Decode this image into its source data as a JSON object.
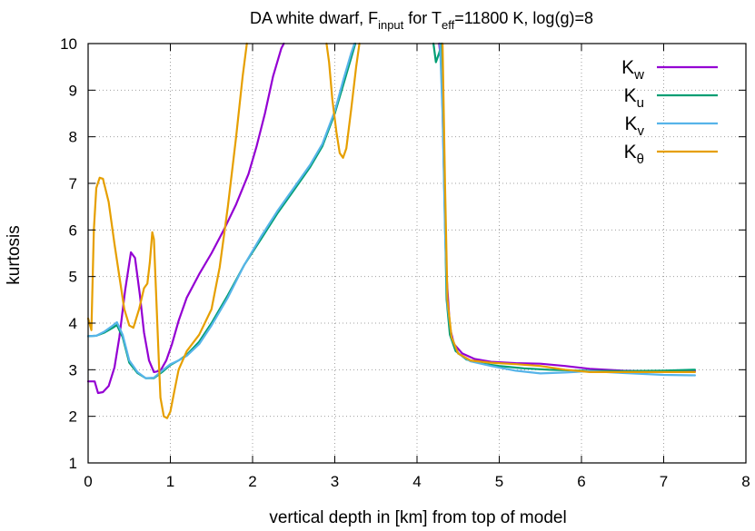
{
  "chart_data": {
    "type": "line",
    "title": {
      "prefix": "DA white dwarf, F",
      "sub1": "input",
      "middle": " for T",
      "sub2": "eff",
      "suffix": "=11800 K, log(g)=8"
    },
    "xlabel": "vertical depth in [km] from top of model",
    "ylabel": "kurtosis",
    "xlim": [
      0,
      8
    ],
    "ylim": [
      1,
      10
    ],
    "xticks": [
      0,
      1,
      2,
      3,
      4,
      5,
      6,
      7,
      8
    ],
    "yticks": [
      1,
      2,
      3,
      4,
      5,
      6,
      7,
      8,
      9,
      10
    ],
    "grid": true,
    "legend_position": "top-right",
    "series": [
      {
        "name": "K",
        "subscript": "w",
        "color": "#9400d3",
        "points": [
          [
            0.0,
            2.75
          ],
          [
            0.08,
            2.75
          ],
          [
            0.12,
            2.5
          ],
          [
            0.18,
            2.52
          ],
          [
            0.25,
            2.65
          ],
          [
            0.32,
            3.05
          ],
          [
            0.38,
            3.7
          ],
          [
            0.45,
            4.7
          ],
          [
            0.52,
            5.52
          ],
          [
            0.57,
            5.4
          ],
          [
            0.63,
            4.6
          ],
          [
            0.68,
            3.8
          ],
          [
            0.74,
            3.2
          ],
          [
            0.8,
            2.95
          ],
          [
            0.88,
            2.98
          ],
          [
            0.95,
            3.2
          ],
          [
            1.02,
            3.55
          ],
          [
            1.1,
            4.05
          ],
          [
            1.2,
            4.55
          ],
          [
            1.35,
            5.05
          ],
          [
            1.5,
            5.5
          ],
          [
            1.65,
            6.0
          ],
          [
            1.8,
            6.55
          ],
          [
            1.95,
            7.2
          ],
          [
            2.05,
            7.8
          ],
          [
            2.15,
            8.5
          ],
          [
            2.25,
            9.3
          ],
          [
            2.35,
            9.9
          ],
          [
            2.38,
            10.0
          ]
        ]
      },
      {
        "name": "K",
        "subscript": "w",
        "color": "#9400d3",
        "points": [
          [
            4.27,
            10.0
          ],
          [
            4.3,
            9.5
          ],
          [
            4.33,
            7.0
          ],
          [
            4.36,
            5.0
          ],
          [
            4.4,
            3.9
          ],
          [
            4.45,
            3.55
          ],
          [
            4.55,
            3.35
          ],
          [
            4.7,
            3.23
          ],
          [
            4.9,
            3.17
          ],
          [
            5.2,
            3.14
          ],
          [
            5.5,
            3.13
          ],
          [
            5.8,
            3.08
          ],
          [
            6.1,
            3.02
          ],
          [
            6.5,
            2.98
          ],
          [
            7.0,
            2.96
          ],
          [
            7.3,
            2.96
          ],
          [
            7.38,
            2.97
          ]
        ]
      },
      {
        "name": "K",
        "subscript": "u",
        "color": "#009e73",
        "points": [
          [
            0.0,
            3.72
          ],
          [
            0.1,
            3.73
          ],
          [
            0.2,
            3.8
          ],
          [
            0.3,
            3.9
          ],
          [
            0.35,
            3.96
          ],
          [
            0.42,
            3.7
          ],
          [
            0.5,
            3.15
          ],
          [
            0.6,
            2.93
          ],
          [
            0.7,
            2.82
          ],
          [
            0.8,
            2.82
          ],
          [
            0.9,
            2.95
          ],
          [
            1.0,
            3.1
          ],
          [
            1.1,
            3.2
          ],
          [
            1.2,
            3.32
          ],
          [
            1.35,
            3.6
          ],
          [
            1.5,
            4.0
          ],
          [
            1.7,
            4.6
          ],
          [
            1.9,
            5.25
          ],
          [
            2.1,
            5.8
          ],
          [
            2.3,
            6.35
          ],
          [
            2.5,
            6.85
          ],
          [
            2.7,
            7.35
          ],
          [
            2.85,
            7.8
          ],
          [
            3.0,
            8.5
          ],
          [
            3.1,
            9.1
          ],
          [
            3.2,
            9.7
          ],
          [
            3.25,
            10.0
          ]
        ]
      },
      {
        "name": "K",
        "subscript": "u",
        "color": "#009e73",
        "points": [
          [
            4.2,
            10.0
          ],
          [
            4.23,
            9.6
          ],
          [
            4.27,
            9.8
          ],
          [
            4.3,
            10.0
          ]
        ]
      },
      {
        "name": "K",
        "subscript": "u",
        "color": "#009e73",
        "points": [
          [
            4.3,
            10.0
          ],
          [
            4.33,
            7.0
          ],
          [
            4.36,
            4.5
          ],
          [
            4.4,
            3.75
          ],
          [
            4.47,
            3.4
          ],
          [
            4.6,
            3.22
          ],
          [
            4.8,
            3.13
          ],
          [
            5.0,
            3.08
          ],
          [
            5.3,
            3.03
          ],
          [
            5.6,
            3.0
          ],
          [
            6.0,
            2.98
          ],
          [
            6.5,
            2.97
          ],
          [
            7.0,
            2.98
          ],
          [
            7.38,
            3.0
          ]
        ]
      },
      {
        "name": "K",
        "subscript": "v",
        "color": "#56b4e9",
        "points": [
          [
            0.0,
            3.72
          ],
          [
            0.1,
            3.73
          ],
          [
            0.2,
            3.82
          ],
          [
            0.3,
            3.95
          ],
          [
            0.35,
            4.02
          ],
          [
            0.42,
            3.75
          ],
          [
            0.5,
            3.2
          ],
          [
            0.6,
            2.95
          ],
          [
            0.7,
            2.82
          ],
          [
            0.8,
            2.83
          ],
          [
            0.9,
            2.98
          ],
          [
            1.0,
            3.12
          ],
          [
            1.1,
            3.2
          ],
          [
            1.2,
            3.3
          ],
          [
            1.35,
            3.55
          ],
          [
            1.5,
            3.95
          ],
          [
            1.7,
            4.55
          ],
          [
            1.9,
            5.25
          ],
          [
            2.1,
            5.85
          ],
          [
            2.3,
            6.4
          ],
          [
            2.5,
            6.9
          ],
          [
            2.7,
            7.4
          ],
          [
            2.85,
            7.85
          ],
          [
            3.0,
            8.55
          ],
          [
            3.1,
            9.2
          ],
          [
            3.2,
            9.8
          ],
          [
            3.24,
            10.0
          ]
        ]
      },
      {
        "name": "K",
        "subscript": "v",
        "color": "#56b4e9",
        "points": [
          [
            4.28,
            10.0
          ],
          [
            4.31,
            8.5
          ],
          [
            4.34,
            6.0
          ],
          [
            4.37,
            4.4
          ],
          [
            4.42,
            3.7
          ],
          [
            4.5,
            3.35
          ],
          [
            4.65,
            3.18
          ],
          [
            4.9,
            3.08
          ],
          [
            5.2,
            2.98
          ],
          [
            5.5,
            2.92
          ],
          [
            5.8,
            2.94
          ],
          [
            6.1,
            2.97
          ],
          [
            6.5,
            2.93
          ],
          [
            7.0,
            2.89
          ],
          [
            7.38,
            2.88
          ]
        ]
      },
      {
        "name": "K",
        "subscript": "θ",
        "color": "#e69f00",
        "points": [
          [
            0.0,
            4.1
          ],
          [
            0.04,
            3.85
          ],
          [
            0.07,
            6.0
          ],
          [
            0.1,
            6.9
          ],
          [
            0.14,
            7.12
          ],
          [
            0.18,
            7.1
          ],
          [
            0.25,
            6.6
          ],
          [
            0.32,
            5.7
          ],
          [
            0.38,
            5.0
          ],
          [
            0.44,
            4.3
          ],
          [
            0.5,
            3.95
          ],
          [
            0.55,
            3.9
          ],
          [
            0.62,
            4.3
          ],
          [
            0.68,
            4.75
          ],
          [
            0.72,
            4.85
          ],
          [
            0.75,
            5.3
          ],
          [
            0.78,
            5.95
          ],
          [
            0.8,
            5.8
          ],
          [
            0.83,
            4.5
          ],
          [
            0.86,
            3.2
          ],
          [
            0.88,
            2.4
          ],
          [
            0.92,
            2.0
          ],
          [
            0.96,
            1.96
          ],
          [
            1.0,
            2.1
          ],
          [
            1.05,
            2.55
          ],
          [
            1.1,
            3.0
          ],
          [
            1.2,
            3.4
          ],
          [
            1.35,
            3.75
          ],
          [
            1.5,
            4.3
          ],
          [
            1.6,
            5.2
          ],
          [
            1.7,
            6.5
          ],
          [
            1.8,
            8.0
          ],
          [
            1.88,
            9.3
          ],
          [
            1.93,
            10.0
          ]
        ]
      },
      {
        "name": "K",
        "subscript": "θ",
        "color": "#e69f00",
        "points": [
          [
            2.9,
            10.0
          ],
          [
            2.93,
            9.6
          ],
          [
            2.97,
            8.8
          ],
          [
            3.02,
            8.1
          ],
          [
            3.06,
            7.65
          ],
          [
            3.1,
            7.55
          ],
          [
            3.14,
            7.75
          ],
          [
            3.2,
            8.6
          ],
          [
            3.26,
            9.5
          ],
          [
            3.3,
            10.0
          ]
        ]
      },
      {
        "name": "K",
        "subscript": "θ",
        "color": "#e69f00",
        "points": [
          [
            4.31,
            10.0
          ],
          [
            4.34,
            7.0
          ],
          [
            4.37,
            4.5
          ],
          [
            4.42,
            3.7
          ],
          [
            4.5,
            3.35
          ],
          [
            4.65,
            3.2
          ],
          [
            4.9,
            3.15
          ],
          [
            5.2,
            3.12
          ],
          [
            5.5,
            3.08
          ],
          [
            5.8,
            3.0
          ],
          [
            6.1,
            2.95
          ],
          [
            6.5,
            2.95
          ],
          [
            7.0,
            2.95
          ],
          [
            7.38,
            2.95
          ]
        ]
      }
    ],
    "legend": [
      {
        "name": "K",
        "subscript": "w",
        "color": "#9400d3"
      },
      {
        "name": "K",
        "subscript": "u",
        "color": "#009e73"
      },
      {
        "name": "K",
        "subscript": "v",
        "color": "#56b4e9"
      },
      {
        "name": "K",
        "subscript": "θ",
        "color": "#e69f00"
      }
    ]
  }
}
